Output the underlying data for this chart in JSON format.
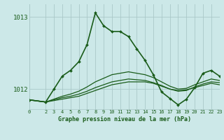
{
  "title": "Graphe pression niveau de la mer (hPa)",
  "background_color": "#cce8e8",
  "grid_color": "#aac8c8",
  "line_color": "#1a5c1a",
  "xlim": [
    0,
    23
  ],
  "ylim": [
    1011.72,
    1013.18
  ],
  "yticks": [
    1012,
    1013
  ],
  "xticks": [
    0,
    2,
    3,
    4,
    5,
    6,
    7,
    8,
    9,
    10,
    11,
    12,
    13,
    14,
    15,
    16,
    17,
    18,
    19,
    20,
    21,
    22,
    23
  ],
  "flat_series": [
    {
      "x": [
        0,
        2,
        3,
        4,
        5,
        6,
        7,
        8,
        9,
        10,
        11,
        12,
        13,
        14,
        15,
        16,
        17,
        18,
        19,
        20,
        21,
        22,
        23
      ],
      "y": [
        1011.85,
        1011.82,
        1011.84,
        1011.86,
        1011.88,
        1011.9,
        1011.94,
        1011.98,
        1012.02,
        1012.06,
        1012.08,
        1012.1,
        1012.1,
        1012.1,
        1012.08,
        1012.04,
        1012.0,
        1011.98,
        1011.99,
        1012.02,
        1012.05,
        1012.08,
        1012.06
      ]
    },
    {
      "x": [
        0,
        2,
        3,
        4,
        5,
        6,
        7,
        8,
        9,
        10,
        11,
        12,
        13,
        14,
        15,
        16,
        17,
        18,
        19,
        20,
        21,
        22,
        23
      ],
      "y": [
        1011.85,
        1011.82,
        1011.85,
        1011.88,
        1011.9,
        1011.93,
        1011.97,
        1012.02,
        1012.06,
        1012.1,
        1012.12,
        1012.14,
        1012.13,
        1012.12,
        1012.09,
        1012.05,
        1012.0,
        1011.97,
        1011.98,
        1012.03,
        1012.07,
        1012.1,
        1012.09
      ]
    },
    {
      "x": [
        0,
        2,
        3,
        4,
        5,
        6,
        7,
        8,
        9,
        10,
        11,
        12,
        13,
        14,
        15,
        16,
        17,
        18,
        19,
        20,
        21,
        22,
        23
      ],
      "y": [
        1011.85,
        1011.82,
        1011.86,
        1011.9,
        1011.93,
        1011.97,
        1012.03,
        1012.1,
        1012.15,
        1012.2,
        1012.22,
        1012.24,
        1012.22,
        1012.2,
        1012.16,
        1012.1,
        1012.04,
        1012.0,
        1012.01,
        1012.06,
        1012.1,
        1012.14,
        1012.12
      ]
    }
  ],
  "main_series": {
    "x": [
      0,
      2,
      3,
      4,
      5,
      6,
      7,
      8,
      9,
      10,
      11,
      12,
      13,
      14,
      15,
      16,
      17,
      18,
      19,
      20,
      21,
      22,
      23
    ],
    "y": [
      1011.85,
      1011.82,
      1012.0,
      1012.18,
      1012.26,
      1012.38,
      1012.62,
      1013.06,
      1012.88,
      1012.8,
      1012.8,
      1012.73,
      1012.56,
      1012.4,
      1012.2,
      1011.96,
      1011.87,
      1011.78,
      1011.86,
      1012.02,
      1012.22,
      1012.26,
      1012.18
    ]
  }
}
